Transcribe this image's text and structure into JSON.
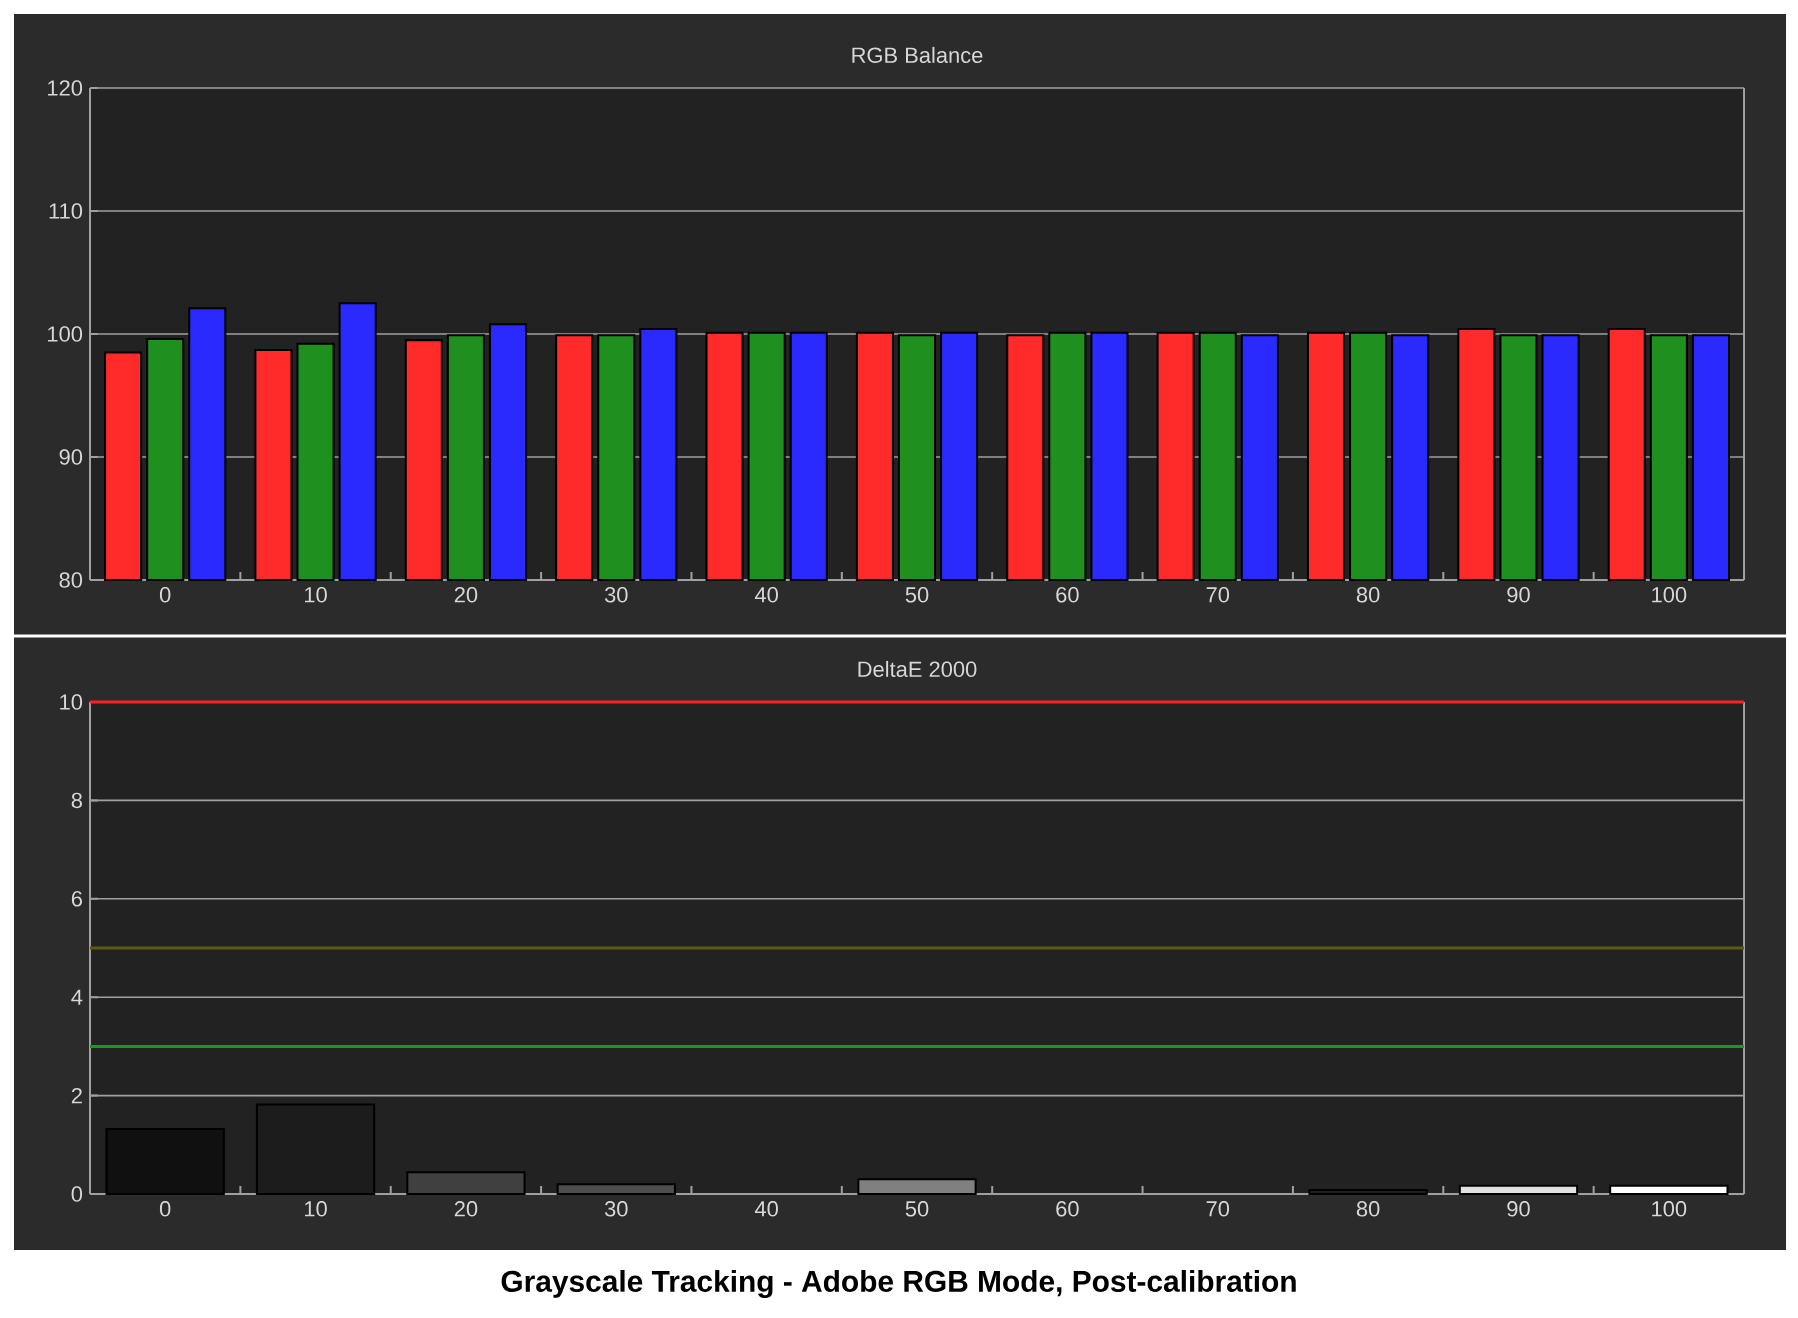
{
  "chart_data": [
    {
      "type": "bar",
      "title": "RGB Balance",
      "categories": [
        "0",
        "10",
        "20",
        "30",
        "40",
        "50",
        "60",
        "70",
        "80",
        "90",
        "100"
      ],
      "ylim": [
        80,
        120
      ],
      "yticks": [
        80,
        90,
        100,
        110,
        120
      ],
      "grid": "y",
      "series": [
        {
          "color": "#ff2a2a",
          "values": [
            98.5,
            98.7,
            99.5,
            99.9,
            100.1,
            100.1,
            99.9,
            100.1,
            100.1,
            100.4,
            100.4
          ]
        },
        {
          "color": "#1f8f1f",
          "values": [
            99.6,
            99.2,
            99.9,
            99.9,
            100.1,
            99.9,
            100.1,
            100.1,
            100.1,
            99.9,
            99.9
          ]
        },
        {
          "color": "#2a2aff",
          "values": [
            102.1,
            102.5,
            100.8,
            100.4,
            100.1,
            100.1,
            100.1,
            99.9,
            99.9,
            99.9,
            99.9
          ]
        }
      ]
    },
    {
      "type": "bar",
      "title": "DeltaE 2000",
      "categories": [
        "0",
        "10",
        "20",
        "30",
        "40",
        "50",
        "60",
        "70",
        "80",
        "90",
        "100"
      ],
      "ylim": [
        0,
        10
      ],
      "yticks": [
        0,
        2,
        4,
        6,
        8,
        10
      ],
      "grid": "y",
      "values": [
        1.32,
        1.82,
        0.44,
        0.2,
        null,
        0.3,
        null,
        null,
        0.08,
        0.17,
        0.17
      ],
      "colors": [
        "#101010",
        "#1c1c1c",
        "#404040",
        "#4d4d4d",
        "#666666",
        "#808080",
        "#999999",
        "#b3b3b3",
        "#202020",
        "#e0e0e0",
        "#ffffff"
      ],
      "ref_lines": [
        {
          "axis": "y",
          "value": 10,
          "color": "#ff2020"
        },
        {
          "axis": "y",
          "value": 5,
          "color": "#5a5a10"
        },
        {
          "axis": "y",
          "value": 3,
          "color": "#10a010"
        }
      ],
      "annotations": [
        "Grayscale Tracking - Adobe RGB Mode, Post-calibration"
      ]
    }
  ]
}
